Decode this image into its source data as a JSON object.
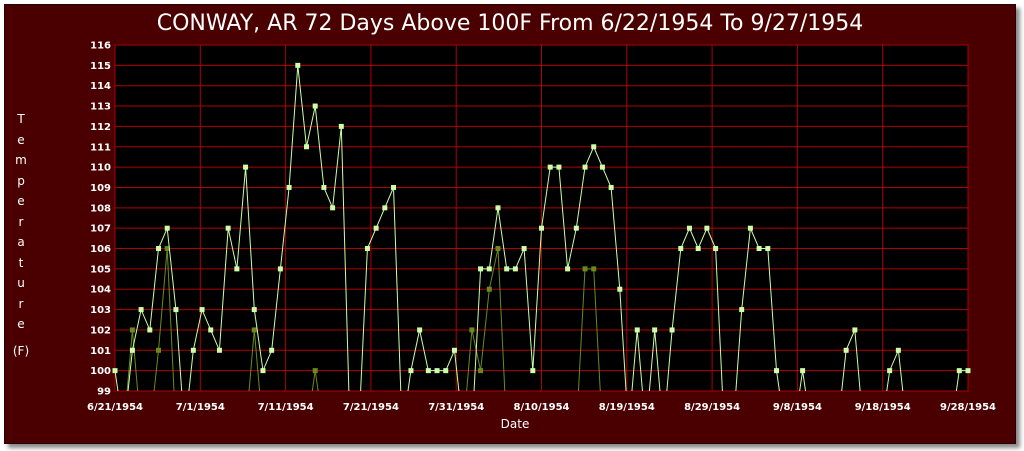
{
  "chart_data": {
    "type": "line",
    "title": "CONWAY, AR  72 Days Above 100F From 6/22/1954 To 9/27/1954",
    "xlabel": "Date",
    "ylabel_letters": [
      "T",
      "e",
      "m",
      "p",
      "e",
      "r",
      "a",
      "t",
      "u",
      "r",
      "e"
    ],
    "ylabel_unit": "(F)",
    "ylim": [
      99,
      116
    ],
    "yticks": [
      99,
      100,
      101,
      102,
      103,
      104,
      105,
      106,
      107,
      108,
      109,
      110,
      111,
      112,
      113,
      114,
      115,
      116
    ],
    "xticks": [
      "6/21/1954",
      "7/1/1954",
      "7/11/1954",
      "7/21/1954",
      "7/31/1954",
      "8/10/1954",
      "8/19/1954",
      "8/29/1954",
      "9/8/1954",
      "9/18/1954",
      "9/28/1954"
    ],
    "grid": true,
    "colors": {
      "background": "#000000",
      "frame": "#4a0000",
      "grid": "#b00000",
      "max_series": "#ccffaa",
      "min_series": "#6b8a1c",
      "text": "#ffffff"
    },
    "series": [
      {
        "role": "max",
        "values": [
          100,
          null,
          101,
          103,
          102,
          106,
          107,
          103,
          null,
          101,
          103,
          102,
          101,
          107,
          105,
          110,
          103,
          100,
          101,
          105,
          109,
          115,
          111,
          113,
          109,
          108,
          112,
          null,
          null,
          106,
          107,
          108,
          109,
          null,
          100,
          102,
          100,
          100,
          100,
          101,
          null,
          null,
          105,
          105,
          108,
          105,
          105,
          106,
          100,
          107,
          110,
          110,
          105,
          107,
          110,
          111,
          110,
          109,
          104,
          null,
          102,
          null,
          102,
          null,
          102,
          106,
          107,
          106,
          107,
          106,
          null,
          null,
          103,
          107,
          106,
          106,
          100,
          null,
          null,
          100,
          null,
          null,
          null,
          null,
          101,
          102,
          null,
          null,
          null,
          100,
          101,
          null,
          null,
          null,
          null,
          null,
          null,
          100,
          100
        ]
      },
      {
        "role": "min",
        "values": [
          null,
          null,
          102,
          null,
          null,
          101,
          106,
          null,
          null,
          null,
          null,
          null,
          null,
          null,
          null,
          null,
          102,
          null,
          null,
          null,
          null,
          null,
          null,
          100,
          null,
          null,
          null,
          null,
          null,
          null,
          null,
          null,
          null,
          null,
          null,
          null,
          null,
          null,
          null,
          null,
          null,
          102,
          100,
          104,
          106,
          null,
          null,
          null,
          null,
          null,
          null,
          null,
          null,
          null,
          105,
          105,
          null,
          null,
          null,
          null,
          null,
          null,
          null,
          null,
          null,
          null,
          null,
          null,
          null,
          null,
          null,
          null,
          null,
          null,
          null,
          null,
          null,
          null,
          null,
          null,
          null,
          null,
          null,
          null,
          null,
          null,
          null,
          null,
          null,
          null,
          null,
          null,
          null,
          null,
          null,
          null,
          null,
          null,
          null
        ]
      }
    ]
  }
}
